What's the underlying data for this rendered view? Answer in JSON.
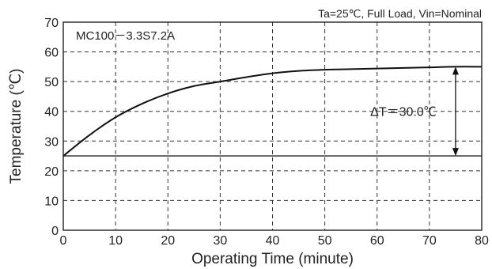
{
  "chart_data": {
    "type": "line",
    "title": "",
    "conditions": "Ta=25℃, Full Load, Vin=Nominal",
    "model_label": "MC100－3.3S7.2A",
    "xlabel": "Operating Time (minute)",
    "ylabel": "Temperature (℃)",
    "xlim": [
      0,
      80
    ],
    "ylim": [
      0,
      70
    ],
    "xticks": [
      0,
      10,
      20,
      30,
      40,
      50,
      60,
      70,
      80
    ],
    "yticks": [
      0,
      10,
      20,
      30,
      40,
      50,
      60,
      70
    ],
    "grid": true,
    "series": [
      {
        "x": [
          0,
          5,
          10,
          15,
          20,
          25,
          30,
          35,
          40,
          45,
          50,
          55,
          60,
          65,
          70,
          75,
          80
        ],
        "y": [
          25,
          32,
          38,
          42.5,
          46,
          48.5,
          50,
          51.5,
          52.8,
          53.6,
          54,
          54.2,
          54.4,
          54.6,
          54.8,
          55,
          55
        ]
      }
    ],
    "reference_line": {
      "y": 25
    },
    "annotation": {
      "text": "ΔT＝30.0℃",
      "x": 75,
      "y_from": 25,
      "y_to": 55
    }
  }
}
